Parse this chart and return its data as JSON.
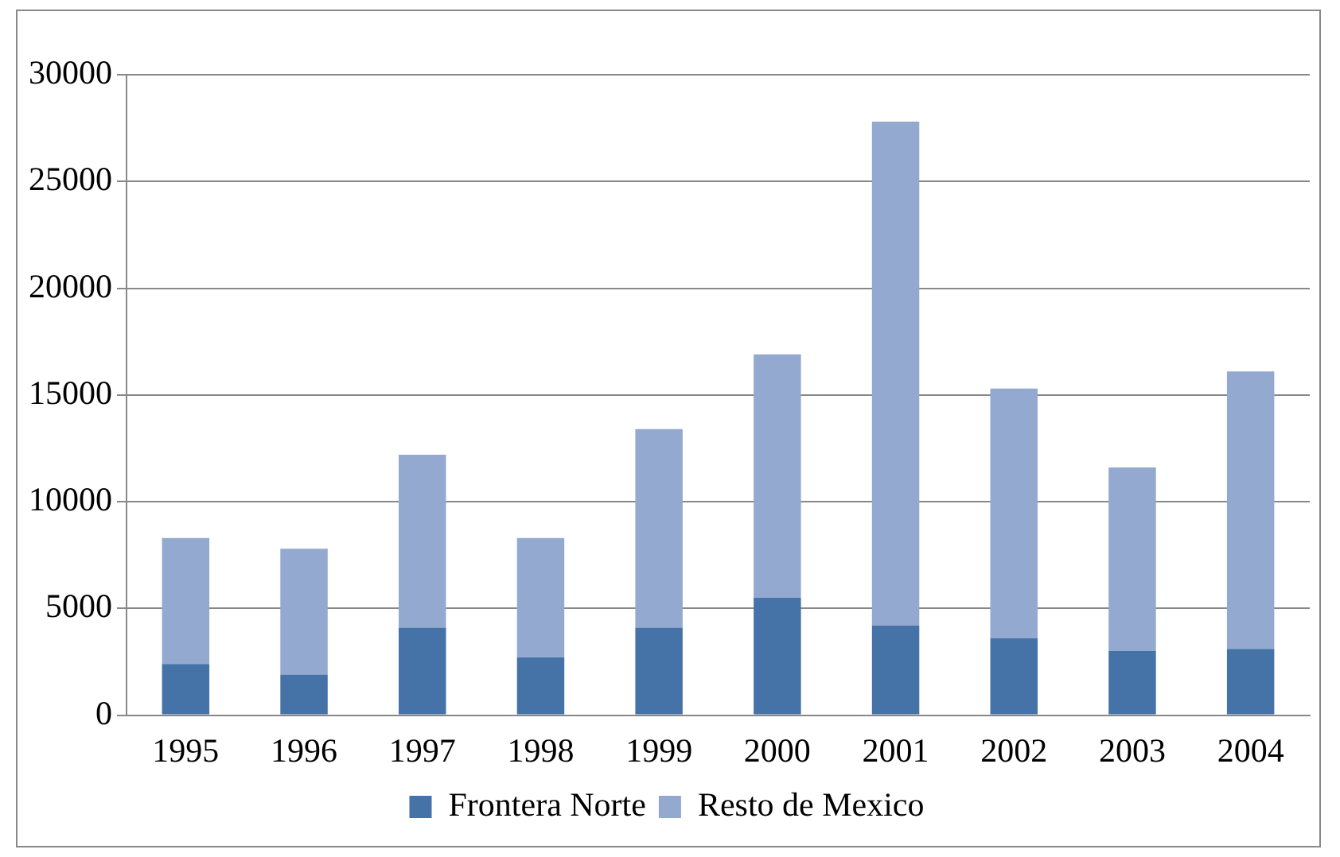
{
  "chart_data": {
    "type": "bar",
    "stacked": true,
    "categories": [
      "1995",
      "1996",
      "1997",
      "1998",
      "1999",
      "2000",
      "2001",
      "2002",
      "2003",
      "2004"
    ],
    "series": [
      {
        "name": "Frontera Norte",
        "color": "#4572a7",
        "values": [
          2400,
          1900,
          4100,
          2700,
          4100,
          5500,
          4200,
          3600,
          3000,
          3100
        ]
      },
      {
        "name": "Resto de Mexico",
        "color": "#93a9cf",
        "values": [
          5900,
          5900,
          8100,
          5600,
          9300,
          11400,
          23600,
          11700,
          8600,
          13000
        ]
      }
    ],
    "ylim": [
      0,
      30000
    ],
    "yticks": [
      0,
      5000,
      10000,
      15000,
      20000,
      25000,
      30000
    ],
    "grid": "y",
    "legend": "bottom"
  }
}
